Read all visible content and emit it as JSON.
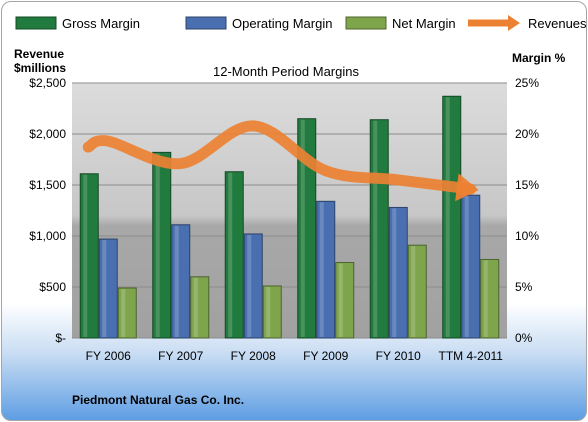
{
  "chart_data": {
    "type": "bar",
    "title": "12-Month Period Margins",
    "left_axis_label_line1": "Revenue",
    "left_axis_label_line2": "$millions",
    "right_axis_label": "Margin %",
    "categories": [
      "FY 2006",
      "FY 2007",
      "FY 2008",
      "FY 2009",
      "FY 2010",
      "TTM 4-2011"
    ],
    "left_ticks": [
      "$-",
      "$500",
      "$1,000",
      "$1,500",
      "$2,000",
      "$2,500"
    ],
    "right_ticks": [
      "0%",
      "5%",
      "10%",
      "15%",
      "20%",
      "25%"
    ],
    "ylim_left": [
      0,
      2500
    ],
    "ylim_right": [
      0,
      25
    ],
    "series": [
      {
        "name": "Gross Margin",
        "axis": "right",
        "color": "#217a3e",
        "values": [
          16.1,
          18.2,
          16.3,
          21.5,
          21.4,
          23.7
        ]
      },
      {
        "name": "Operating Margin",
        "axis": "right",
        "color": "#4a6fb0",
        "values": [
          9.7,
          11.1,
          10.2,
          13.4,
          12.8,
          14.0
        ]
      },
      {
        "name": "Net Margin",
        "axis": "right",
        "color": "#7fa54c",
        "values": [
          4.9,
          6.0,
          5.1,
          7.4,
          9.1,
          7.7
        ]
      },
      {
        "name": "Revenues",
        "axis": "left",
        "type": "line",
        "color": "#ed8133",
        "values": [
          1930,
          1710,
          2080,
          1640,
          1550,
          1460
        ]
      }
    ],
    "grid": true,
    "legend": "top"
  },
  "footer": {
    "company": "Piedmont Natural  Gas Co. Inc."
  }
}
